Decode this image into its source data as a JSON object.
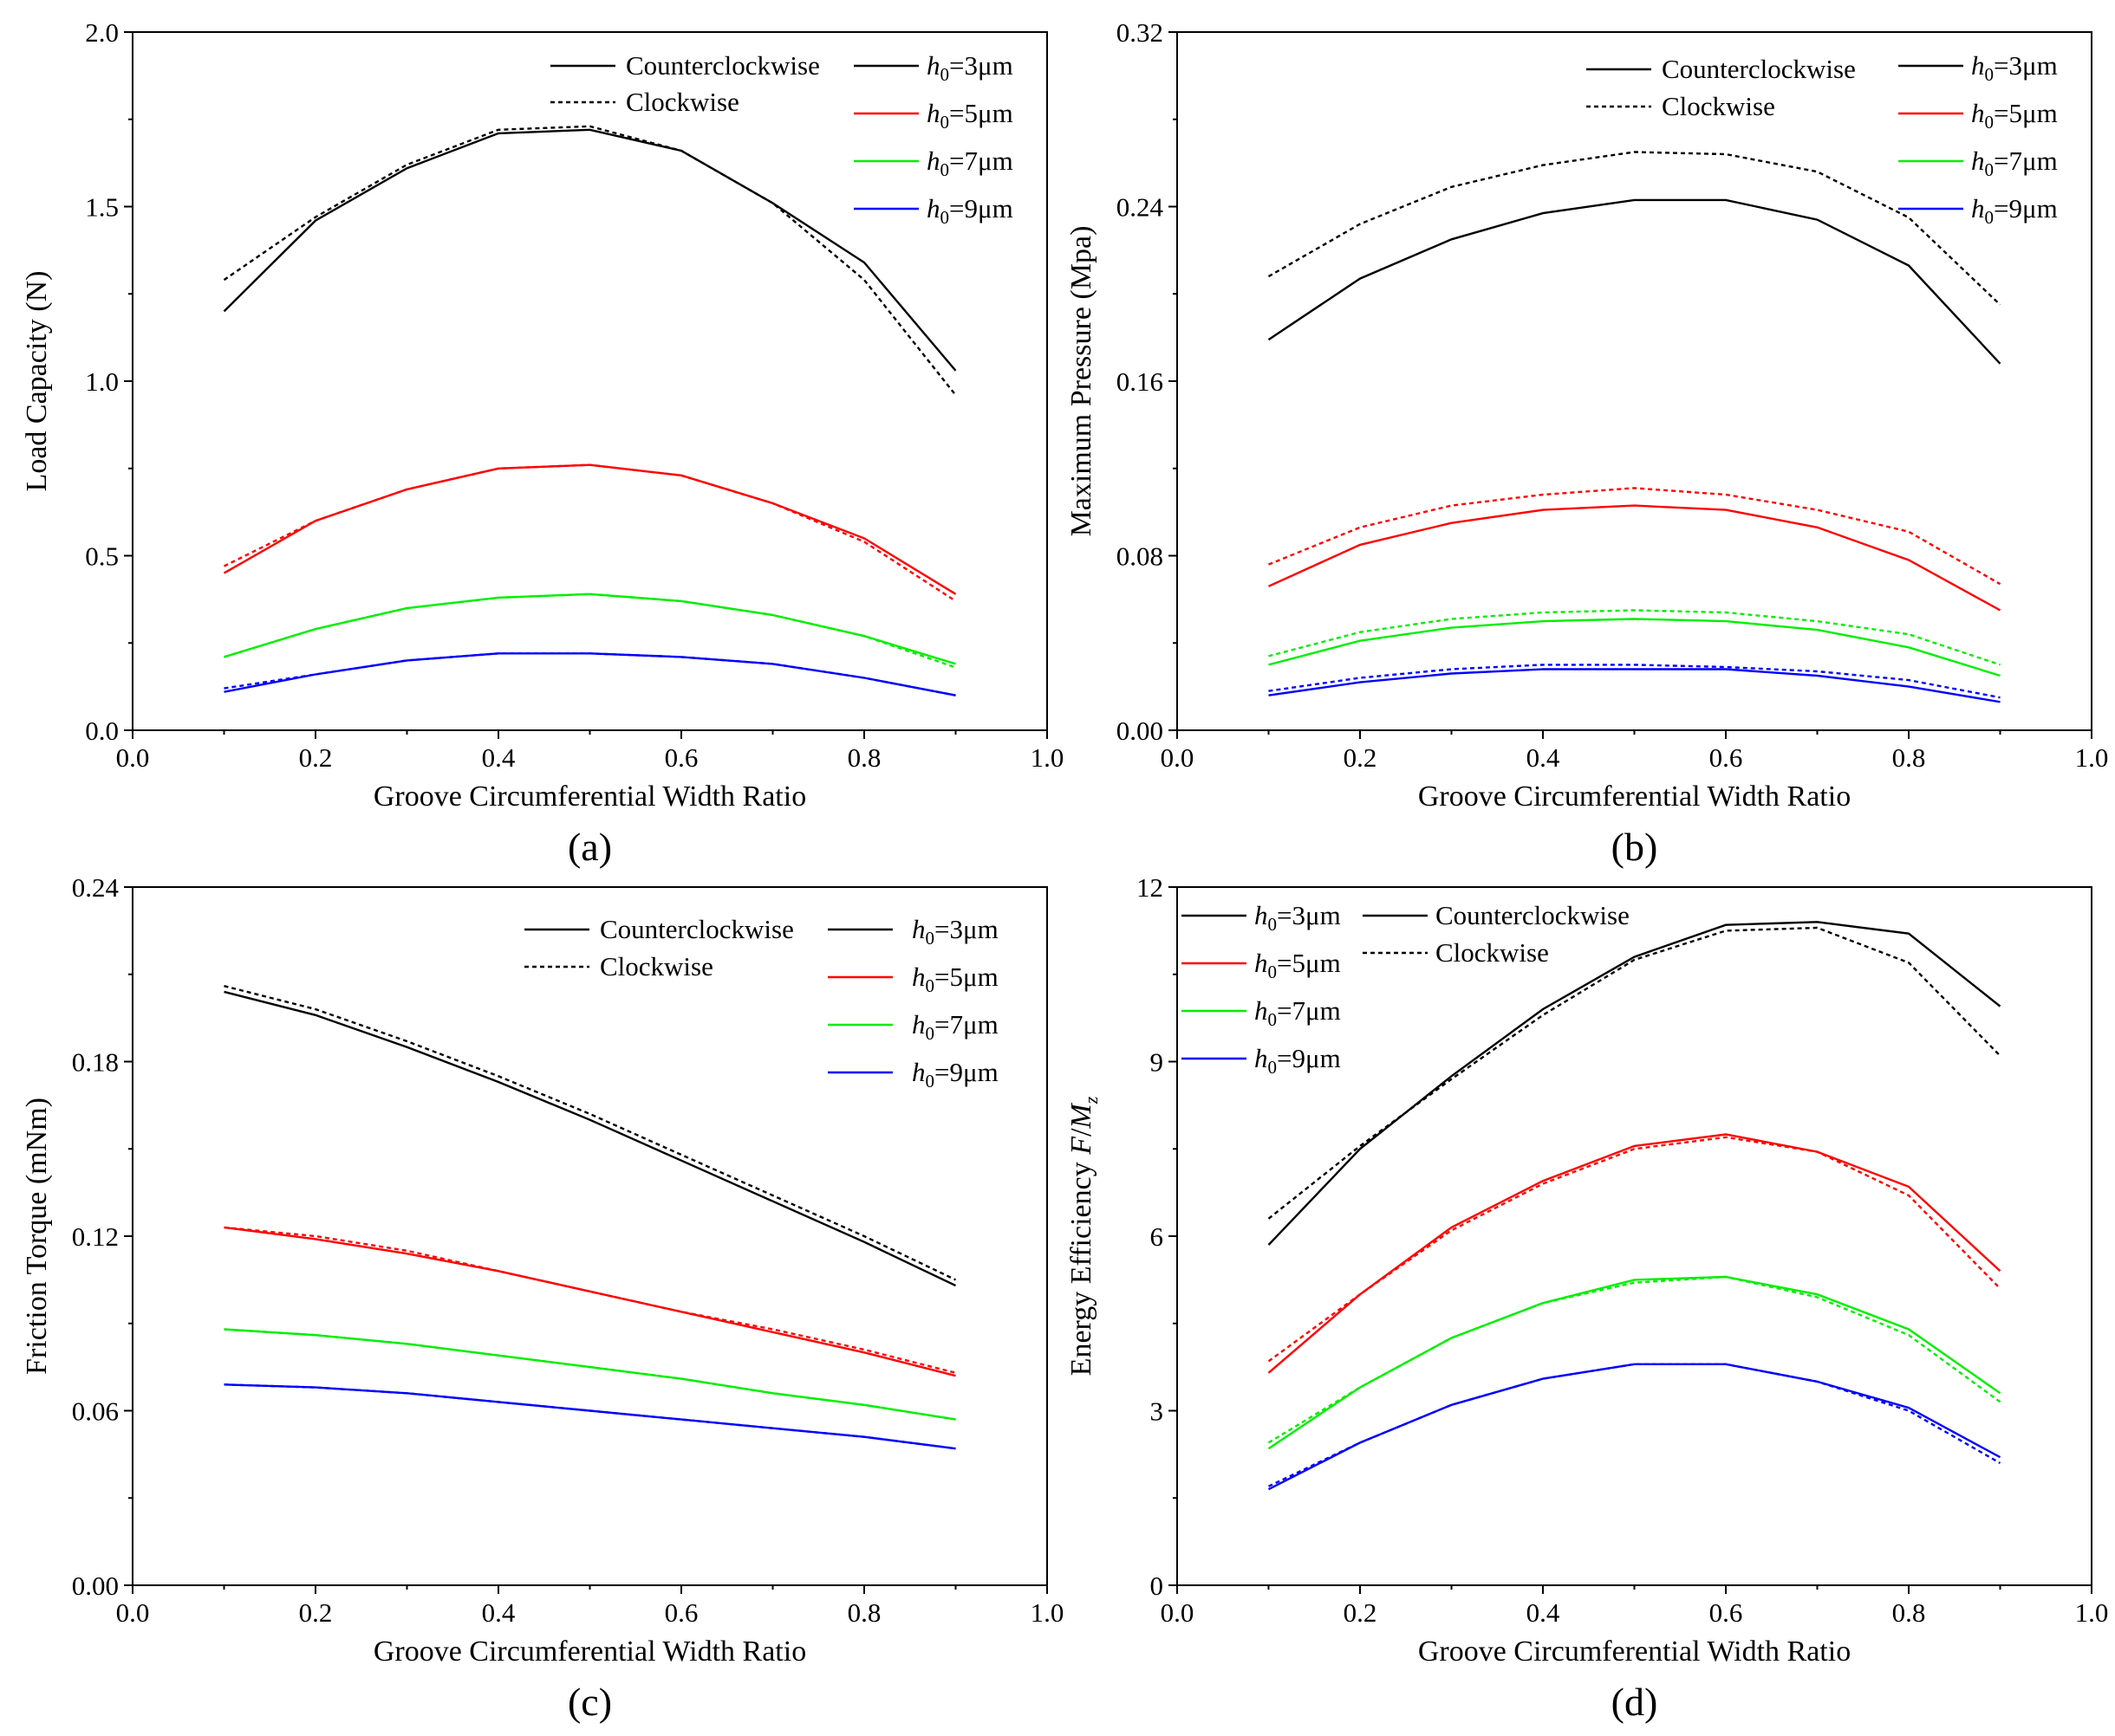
{
  "chart_data": [
    {
      "type": "line",
      "panel_label": "(a)",
      "xlabel": "Groove Circumferential Width Ratio",
      "ylabel": "Load Capacity (N)",
      "xlim": [
        0.0,
        1.0
      ],
      "ylim": [
        0.0,
        2.0
      ],
      "xticks": [
        "0.0",
        "0.2",
        "0.4",
        "0.6",
        "0.8",
        "1.0"
      ],
      "yticks": [
        "0.0",
        "0.5",
        "1.0",
        "1.5",
        "2.0"
      ],
      "x": [
        0.1,
        0.2,
        0.3,
        0.4,
        0.5,
        0.6,
        0.7,
        0.8,
        0.9
      ],
      "legend_style": {
        "ccw": "Counterclockwise",
        "cw": "Clockwise"
      },
      "legend_h": [
        "3μm",
        "5μm",
        "7μm",
        "9μm"
      ],
      "series": [
        {
          "name": "h0=3μm Counterclockwise",
          "color": "#000000",
          "dash": "solid",
          "values": [
            1.2,
            1.46,
            1.61,
            1.71,
            1.72,
            1.66,
            1.51,
            1.34,
            1.03
          ]
        },
        {
          "name": "h0=3μm Clockwise",
          "color": "#000000",
          "dash": "dashed",
          "values": [
            1.29,
            1.47,
            1.62,
            1.72,
            1.73,
            1.66,
            1.51,
            1.29,
            0.96
          ]
        },
        {
          "name": "h0=5μm Counterclockwise",
          "color": "#ff0000",
          "dash": "solid",
          "values": [
            0.45,
            0.6,
            0.69,
            0.75,
            0.76,
            0.73,
            0.65,
            0.55,
            0.39
          ]
        },
        {
          "name": "h0=5μm Clockwise",
          "color": "#ff0000",
          "dash": "dashed",
          "values": [
            0.47,
            0.6,
            0.69,
            0.75,
            0.76,
            0.73,
            0.65,
            0.54,
            0.37
          ]
        },
        {
          "name": "h0=7μm Counterclockwise",
          "color": "#00ee00",
          "dash": "solid",
          "values": [
            0.21,
            0.29,
            0.35,
            0.38,
            0.39,
            0.37,
            0.33,
            0.27,
            0.19
          ]
        },
        {
          "name": "h0=7μm Clockwise",
          "color": "#00ee00",
          "dash": "dashed",
          "values": [
            0.21,
            0.29,
            0.35,
            0.38,
            0.39,
            0.37,
            0.33,
            0.27,
            0.18
          ]
        },
        {
          "name": "h0=9μm Counterclockwise",
          "color": "#0000ff",
          "dash": "solid",
          "values": [
            0.11,
            0.16,
            0.2,
            0.22,
            0.22,
            0.21,
            0.19,
            0.15,
            0.1
          ]
        },
        {
          "name": "h0=9μm Clockwise",
          "color": "#0000ff",
          "dash": "dashed",
          "values": [
            0.12,
            0.16,
            0.2,
            0.22,
            0.22,
            0.21,
            0.19,
            0.15,
            0.1
          ]
        }
      ]
    },
    {
      "type": "line",
      "panel_label": "(b)",
      "xlabel": "Groove Circumferential Width Ratio",
      "ylabel": "Maximum Pressure (Mpa)",
      "xlim": [
        0.0,
        1.0
      ],
      "ylim": [
        0.0,
        0.32
      ],
      "xticks": [
        "0.0",
        "0.2",
        "0.4",
        "0.6",
        "0.8",
        "1.0"
      ],
      "yticks": [
        "0.00",
        "0.08",
        "0.16",
        "0.24",
        "0.32"
      ],
      "x": [
        0.1,
        0.2,
        0.3,
        0.4,
        0.5,
        0.6,
        0.7,
        0.8,
        0.9
      ],
      "legend_style": {
        "ccw": "Counterclockwise",
        "cw": "Clockwise"
      },
      "legend_h": [
        "3μm",
        "5μm",
        "7μm",
        "9μm"
      ],
      "series": [
        {
          "name": "h0=3μm Counterclockwise",
          "color": "#000000",
          "dash": "solid",
          "values": [
            0.179,
            0.207,
            0.225,
            0.237,
            0.243,
            0.243,
            0.234,
            0.213,
            0.168
          ]
        },
        {
          "name": "h0=3μm Clockwise",
          "color": "#000000",
          "dash": "dashed",
          "values": [
            0.208,
            0.232,
            0.249,
            0.259,
            0.265,
            0.264,
            0.256,
            0.235,
            0.195
          ]
        },
        {
          "name": "h0=5μm Counterclockwise",
          "color": "#ff0000",
          "dash": "solid",
          "values": [
            0.066,
            0.085,
            0.095,
            0.101,
            0.103,
            0.101,
            0.093,
            0.078,
            0.055
          ]
        },
        {
          "name": "h0=5μm Clockwise",
          "color": "#ff0000",
          "dash": "dashed",
          "values": [
            0.076,
            0.093,
            0.103,
            0.108,
            0.111,
            0.108,
            0.101,
            0.091,
            0.067
          ]
        },
        {
          "name": "h0=7μm Counterclockwise",
          "color": "#00ee00",
          "dash": "solid",
          "values": [
            0.03,
            0.041,
            0.047,
            0.05,
            0.051,
            0.05,
            0.046,
            0.038,
            0.025
          ]
        },
        {
          "name": "h0=7μm Clockwise",
          "color": "#00ee00",
          "dash": "dashed",
          "values": [
            0.034,
            0.045,
            0.051,
            0.054,
            0.055,
            0.054,
            0.05,
            0.044,
            0.03
          ]
        },
        {
          "name": "h0=9μm Counterclockwise",
          "color": "#0000ff",
          "dash": "solid",
          "values": [
            0.016,
            0.022,
            0.026,
            0.028,
            0.028,
            0.028,
            0.025,
            0.02,
            0.013
          ]
        },
        {
          "name": "h0=9μm Clockwise",
          "color": "#0000ff",
          "dash": "dashed",
          "values": [
            0.018,
            0.024,
            0.028,
            0.03,
            0.03,
            0.029,
            0.027,
            0.023,
            0.015
          ]
        }
      ]
    },
    {
      "type": "line",
      "panel_label": "(c)",
      "xlabel": "Groove Circumferential Width Ratio",
      "ylabel": "Friction Torque (mNm)",
      "xlim": [
        0.0,
        1.0
      ],
      "ylim": [
        0.0,
        0.24
      ],
      "xticks": [
        "0.0",
        "0.2",
        "0.4",
        "0.6",
        "0.8",
        "1.0"
      ],
      "yticks": [
        "0.00",
        "0.06",
        "0.12",
        "0.18",
        "0.24"
      ],
      "x": [
        0.1,
        0.2,
        0.3,
        0.4,
        0.5,
        0.6,
        0.7,
        0.8,
        0.9
      ],
      "legend_style": {
        "ccw": "Counterclockwise",
        "cw": "Clockwise"
      },
      "legend_h": [
        "3μm",
        "5μm",
        "7μm",
        "9μm"
      ],
      "series": [
        {
          "name": "h0=3μm Counterclockwise",
          "color": "#000000",
          "dash": "solid",
          "values": [
            0.204,
            0.196,
            0.185,
            0.173,
            0.16,
            0.146,
            0.132,
            0.118,
            0.103
          ]
        },
        {
          "name": "h0=3μm Clockwise",
          "color": "#000000",
          "dash": "dashed",
          "values": [
            0.206,
            0.198,
            0.187,
            0.175,
            0.162,
            0.148,
            0.134,
            0.12,
            0.105
          ]
        },
        {
          "name": "h0=5μm Counterclockwise",
          "color": "#ff0000",
          "dash": "solid",
          "values": [
            0.123,
            0.119,
            0.114,
            0.108,
            0.101,
            0.094,
            0.087,
            0.08,
            0.072
          ]
        },
        {
          "name": "h0=5μm Clockwise",
          "color": "#ff0000",
          "dash": "dashed",
          "values": [
            0.123,
            0.12,
            0.115,
            0.108,
            0.101,
            0.094,
            0.088,
            0.081,
            0.073
          ]
        },
        {
          "name": "h0=7μm Counterclockwise",
          "color": "#00ee00",
          "dash": "solid",
          "values": [
            0.088,
            0.086,
            0.083,
            0.079,
            0.075,
            0.071,
            0.066,
            0.062,
            0.057
          ]
        },
        {
          "name": "h0=7μm Clockwise",
          "color": "#00ee00",
          "dash": "dashed",
          "values": [
            0.088,
            0.086,
            0.083,
            0.079,
            0.075,
            0.071,
            0.066,
            0.062,
            0.057
          ]
        },
        {
          "name": "h0=9μm Counterclockwise",
          "color": "#0000ff",
          "dash": "solid",
          "values": [
            0.069,
            0.068,
            0.066,
            0.063,
            0.06,
            0.057,
            0.054,
            0.051,
            0.047
          ]
        },
        {
          "name": "h0=9μm Clockwise",
          "color": "#0000ff",
          "dash": "dashed",
          "values": [
            0.069,
            0.068,
            0.066,
            0.063,
            0.06,
            0.057,
            0.054,
            0.051,
            0.047
          ]
        }
      ]
    },
    {
      "type": "line",
      "panel_label": "(d)",
      "xlabel": "Groove Circumferential Width Ratio",
      "ylabel": "Energy Efficiency F/Mz",
      "ylabel_parts": {
        "text": "Energy Efficiency ",
        "f": "F",
        "slash": "/",
        "m": "M",
        "sub": "z"
      },
      "xlim": [
        0.0,
        1.0
      ],
      "ylim": [
        0,
        12
      ],
      "xticks": [
        "0.0",
        "0.2",
        "0.4",
        "0.6",
        "0.8",
        "1.0"
      ],
      "yticks": [
        "0",
        "3",
        "6",
        "9",
        "12"
      ],
      "x": [
        0.1,
        0.2,
        0.3,
        0.4,
        0.5,
        0.6,
        0.7,
        0.8,
        0.9
      ],
      "legend_style": {
        "ccw": "Counterclockwise",
        "cw": "Clockwise"
      },
      "legend_h": [
        "3μm",
        "5μm",
        "7μm",
        "9μm"
      ],
      "series": [
        {
          "name": "h0=3μm Counterclockwise",
          "color": "#000000",
          "dash": "solid",
          "values": [
            5.85,
            7.5,
            8.75,
            9.9,
            10.8,
            11.35,
            11.4,
            11.2,
            9.95
          ]
        },
        {
          "name": "h0=3μm Clockwise",
          "color": "#000000",
          "dash": "dashed",
          "values": [
            6.3,
            7.55,
            8.7,
            9.8,
            10.75,
            11.25,
            11.3,
            10.7,
            9.1
          ]
        },
        {
          "name": "h0=5μm Counterclockwise",
          "color": "#ff0000",
          "dash": "solid",
          "values": [
            3.65,
            5.0,
            6.15,
            6.95,
            7.55,
            7.75,
            7.45,
            6.85,
            5.4
          ]
        },
        {
          "name": "h0=5μm Clockwise",
          "color": "#ff0000",
          "dash": "dashed",
          "values": [
            3.85,
            5.0,
            6.1,
            6.9,
            7.5,
            7.7,
            7.45,
            6.7,
            5.1
          ]
        },
        {
          "name": "h0=7μm Counterclockwise",
          "color": "#00ee00",
          "dash": "solid",
          "values": [
            2.35,
            3.4,
            4.25,
            4.85,
            5.25,
            5.3,
            5.0,
            4.4,
            3.3
          ]
        },
        {
          "name": "h0=7μm Clockwise",
          "color": "#00ee00",
          "dash": "dashed",
          "values": [
            2.45,
            3.4,
            4.25,
            4.85,
            5.2,
            5.3,
            4.95,
            4.3,
            3.15
          ]
        },
        {
          "name": "h0=9μm Counterclockwise",
          "color": "#0000ff",
          "dash": "solid",
          "values": [
            1.65,
            2.45,
            3.1,
            3.55,
            3.8,
            3.8,
            3.5,
            3.05,
            2.2
          ]
        },
        {
          "name": "h0=9μm Clockwise",
          "color": "#0000ff",
          "dash": "dashed",
          "values": [
            1.7,
            2.45,
            3.1,
            3.55,
            3.8,
            3.8,
            3.5,
            3.0,
            2.1
          ]
        }
      ]
    }
  ]
}
